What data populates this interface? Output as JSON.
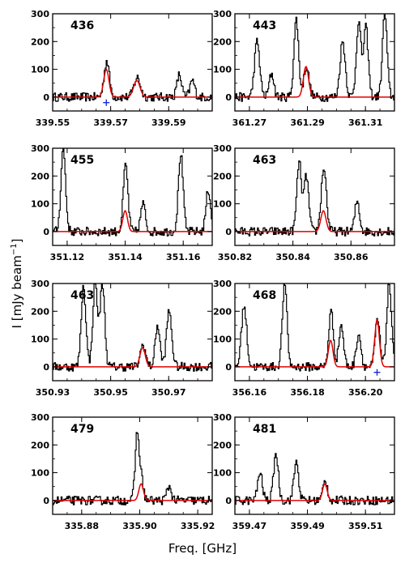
{
  "chart_data": {
    "type": "line",
    "xlabel": "Freq. [GHz]",
    "ylabel": "I [mJy beam",
    "ylabel_sup": "−1",
    "ylabel_close": "]",
    "colors": {
      "observed": "#000000",
      "model": "#e00000",
      "marker": "#1a2bd6"
    },
    "panels": [
      {
        "label": "436",
        "xlim": [
          339.55,
          339.605
        ],
        "ylim": [
          -50,
          300
        ],
        "xticks": [
          "339.55",
          "339.57",
          "339.59"
        ],
        "xtick_values": [
          339.55,
          339.57,
          339.59
        ],
        "yticks": [
          0,
          100,
          200,
          300
        ],
        "peaks": [
          [
            339.5685,
            130,
            0.0009
          ],
          [
            339.579,
            70,
            0.0011
          ],
          [
            339.5935,
            80,
            0.0008
          ],
          [
            339.598,
            60,
            0.0008
          ]
        ],
        "model": [
          [
            339.5685,
            100,
            0.0009
          ],
          [
            339.579,
            60,
            0.0011
          ]
        ],
        "markers": [
          339.5685
        ]
      },
      {
        "label": "443",
        "xlim": [
          361.265,
          361.32
        ],
        "ylim": [
          -50,
          300
        ],
        "xticks": [
          "361.27",
          "361.29",
          "361.31"
        ],
        "xtick_values": [
          361.27,
          361.29,
          361.31
        ],
        "yticks": [
          0,
          100,
          200,
          300
        ],
        "peaks": [
          [
            361.2725,
            200,
            0.0009
          ],
          [
            361.2775,
            85,
            0.0008
          ],
          [
            361.286,
            280,
            0.0008
          ],
          [
            361.2895,
            110,
            0.0009
          ],
          [
            361.302,
            200,
            0.0009
          ],
          [
            361.3075,
            270,
            0.0008
          ],
          [
            361.31,
            250,
            0.0008
          ],
          [
            361.3165,
            300,
            0.0008
          ]
        ],
        "model": [
          [
            361.2895,
            110,
            0.0009
          ]
        ],
        "markers": []
      },
      {
        "label": "455",
        "xlim": [
          351.115,
          351.17
        ],
        "ylim": [
          -50,
          300
        ],
        "xticks": [
          "351.12",
          "351.14",
          "351.16"
        ],
        "xtick_values": [
          351.12,
          351.14,
          351.16
        ],
        "yticks": [
          0,
          100,
          200,
          300
        ],
        "peaks": [
          [
            351.1185,
            300,
            0.0008
          ],
          [
            351.14,
            240,
            0.0008
          ],
          [
            351.146,
            100,
            0.0008
          ],
          [
            351.159,
            280,
            0.0008
          ],
          [
            351.1685,
            150,
            0.0008
          ]
        ],
        "model": [
          [
            351.14,
            75,
            0.0008
          ]
        ],
        "markers": []
      },
      {
        "label": "463",
        "xlim": [
          350.82,
          350.875
        ],
        "ylim": [
          -50,
          300
        ],
        "xticks": [
          "350.82",
          "350.84",
          "350.86"
        ],
        "xtick_values": [
          350.82,
          350.84,
          350.86
        ],
        "yticks": [
          0,
          100,
          200,
          300
        ],
        "peaks": [
          [
            350.842,
            250,
            0.0008
          ],
          [
            350.8445,
            200,
            0.0008
          ],
          [
            350.8505,
            230,
            0.0009
          ],
          [
            350.862,
            110,
            0.0008
          ]
        ],
        "model": [
          [
            350.8505,
            75,
            0.0009
          ]
        ],
        "markers": []
      },
      {
        "label": "463",
        "xlim": [
          350.93,
          350.985
        ],
        "ylim": [
          -50,
          300
        ],
        "xticks": [
          "350.93",
          "350.95",
          "350.97"
        ],
        "xtick_values": [
          350.93,
          350.95,
          350.97
        ],
        "yticks": [
          0,
          100,
          200,
          300
        ],
        "peaks": [
          [
            350.9405,
            290,
            0.0008
          ],
          [
            350.9445,
            300,
            0.0008
          ],
          [
            350.947,
            300,
            0.0008
          ],
          [
            350.961,
            80,
            0.0009
          ],
          [
            350.966,
            150,
            0.0008
          ],
          [
            350.97,
            200,
            0.0009
          ]
        ],
        "model": [
          [
            350.961,
            70,
            0.0009
          ]
        ],
        "markers": []
      },
      {
        "label": "468",
        "xlim": [
          356.155,
          356.21
        ],
        "ylim": [
          -50,
          300
        ],
        "xticks": [
          "356.16",
          "356.18",
          "356.20"
        ],
        "xtick_values": [
          356.16,
          356.18,
          356.2
        ],
        "yticks": [
          0,
          100,
          200,
          300
        ],
        "peaks": [
          [
            356.158,
            220,
            0.0009
          ],
          [
            356.172,
            300,
            0.0008
          ],
          [
            356.188,
            200,
            0.0008
          ],
          [
            356.1915,
            150,
            0.0008
          ],
          [
            356.1975,
            120,
            0.0008
          ],
          [
            356.204,
            170,
            0.0008
          ],
          [
            356.208,
            300,
            0.0008
          ]
        ],
        "model": [
          [
            356.188,
            95,
            0.0008
          ],
          [
            356.204,
            170,
            0.0008
          ]
        ],
        "markers": [
          356.204
        ]
      },
      {
        "label": "479",
        "xlim": [
          335.87,
          335.925
        ],
        "ylim": [
          -50,
          300
        ],
        "xticks": [
          "335.88",
          "335.90",
          "335.92"
        ],
        "xtick_values": [
          335.88,
          335.9,
          335.92
        ],
        "yticks": [
          0,
          100,
          200,
          300
        ],
        "peaks": [
          [
            335.899,
            240,
            0.0007
          ],
          [
            335.9005,
            70,
            0.0007
          ],
          [
            335.91,
            50,
            0.0008
          ]
        ],
        "model": [
          [
            335.9005,
            60,
            0.0008
          ]
        ],
        "markers": []
      },
      {
        "label": "481",
        "xlim": [
          359.465,
          359.52
        ],
        "ylim": [
          -50,
          300
        ],
        "xticks": [
          "359.47",
          "359.49",
          "359.51"
        ],
        "xtick_values": [
          359.47,
          359.49,
          359.51
        ],
        "yticks": [
          0,
          100,
          200,
          300
        ],
        "peaks": [
          [
            359.4735,
            100,
            0.0008
          ],
          [
            359.479,
            170,
            0.0008
          ],
          [
            359.486,
            140,
            0.0008
          ],
          [
            359.496,
            70,
            0.0008
          ]
        ],
        "model": [
          [
            359.496,
            60,
            0.0008
          ]
        ],
        "markers": []
      }
    ]
  }
}
